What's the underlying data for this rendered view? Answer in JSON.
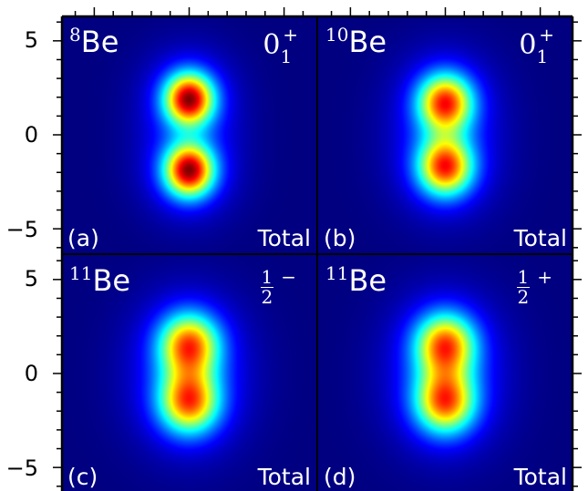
{
  "chart_data": {
    "type": "heatmap",
    "colormap": "jet",
    "xlim": [
      -6.7,
      6.7
    ],
    "ylim": [
      -6.3,
      6.3
    ],
    "yticks": [
      "5",
      "0",
      "−5"
    ],
    "ytick_values": [
      5,
      0,
      -5
    ],
    "panels": [
      {
        "tag": "(a)",
        "nucleus_mass": "8",
        "nucleus": "Be",
        "state": {
          "j": "0",
          "sub": "1",
          "parity": "+"
        },
        "label": "Total",
        "clusters_y": [
          1.9,
          -1.9
        ],
        "peak": 1.0,
        "width": 0.95
      },
      {
        "tag": "(b)",
        "nucleus_mass": "10",
        "nucleus": "Be",
        "state": {
          "j": "0",
          "sub": "1",
          "parity": "+"
        },
        "label": "Total",
        "clusters_y": [
          1.7,
          -1.7
        ],
        "peak": 0.88,
        "width": 1.05
      },
      {
        "tag": "(c)",
        "nucleus_mass": "11",
        "nucleus": "Be",
        "state": {
          "num": "1",
          "den": "2",
          "parity": "−"
        },
        "label": "Total",
        "clusters_y": [
          1.5,
          -1.5
        ],
        "peak": 0.86,
        "width": 1.15
      },
      {
        "tag": "(d)",
        "nucleus_mass": "11",
        "nucleus": "Be",
        "state": {
          "num": "1",
          "den": "2",
          "parity": "+"
        },
        "label": "Total",
        "clusters_y": [
          1.5,
          -1.5
        ],
        "peak": 0.86,
        "width": 1.15
      }
    ]
  }
}
